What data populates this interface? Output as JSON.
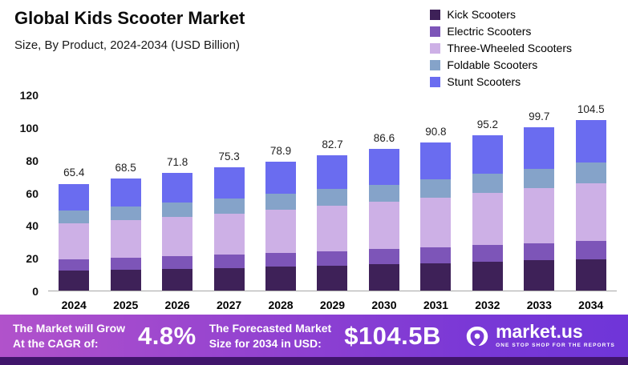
{
  "chart_data": {
    "type": "bar",
    "stacked": true,
    "title": "Global Kids Scooter Market",
    "subtitle": "Size, By Product, 2024-2034 (USD Billion)",
    "categories": [
      "2024",
      "2025",
      "2026",
      "2027",
      "2028",
      "2029",
      "2030",
      "2031",
      "2032",
      "2033",
      "2034"
    ],
    "totals": [
      65.4,
      68.5,
      71.8,
      75.3,
      78.9,
      82.7,
      86.6,
      90.8,
      95.2,
      99.7,
      104.5
    ],
    "series": [
      {
        "name": "Kick Scooters",
        "color": "#3e2158",
        "values": [
          12.1,
          12.7,
          13.3,
          13.9,
          14.6,
          15.3,
          16.0,
          16.8,
          17.6,
          18.4,
          19.3
        ]
      },
      {
        "name": "Electric Scooters",
        "color": "#7d55b8",
        "values": [
          7.0,
          7.3,
          7.7,
          8.1,
          8.4,
          8.9,
          9.3,
          9.7,
          10.2,
          10.7,
          11.2
        ]
      },
      {
        "name": "Three-Wheeled Scooters",
        "color": "#cdb0e6",
        "values": [
          21.9,
          23.0,
          24.1,
          25.2,
          26.4,
          27.7,
          29.0,
          30.4,
          31.9,
          33.4,
          35.0
        ]
      },
      {
        "name": "Foldable Scooters",
        "color": "#85a3c9",
        "values": [
          8.0,
          8.4,
          8.8,
          9.2,
          9.7,
          10.1,
          10.6,
          11.1,
          11.7,
          12.2,
          12.8
        ]
      },
      {
        "name": "Stunt Scooters",
        "color": "#6a6cf0",
        "values": [
          16.4,
          17.1,
          17.9,
          18.9,
          19.8,
          20.7,
          21.7,
          22.8,
          23.8,
          25.0,
          26.2
        ]
      }
    ],
    "y_ticks": [
      0,
      20,
      40,
      60,
      80,
      100,
      120
    ],
    "ylim": [
      0,
      120
    ],
    "grid": false,
    "legend_position": "top-right"
  },
  "banner": {
    "cagr_label_line1": "The Market will Grow",
    "cagr_label_line2": "At the CAGR of:",
    "cagr_value": "4.8%",
    "forecast_label_line1": "The Forecasted Market",
    "forecast_label_line2": "Size for 2034 in USD:",
    "forecast_value": "$104.5B",
    "logo_text": "market.us",
    "logo_tagline": "ONE STOP SHOP FOR THE REPORTS"
  }
}
